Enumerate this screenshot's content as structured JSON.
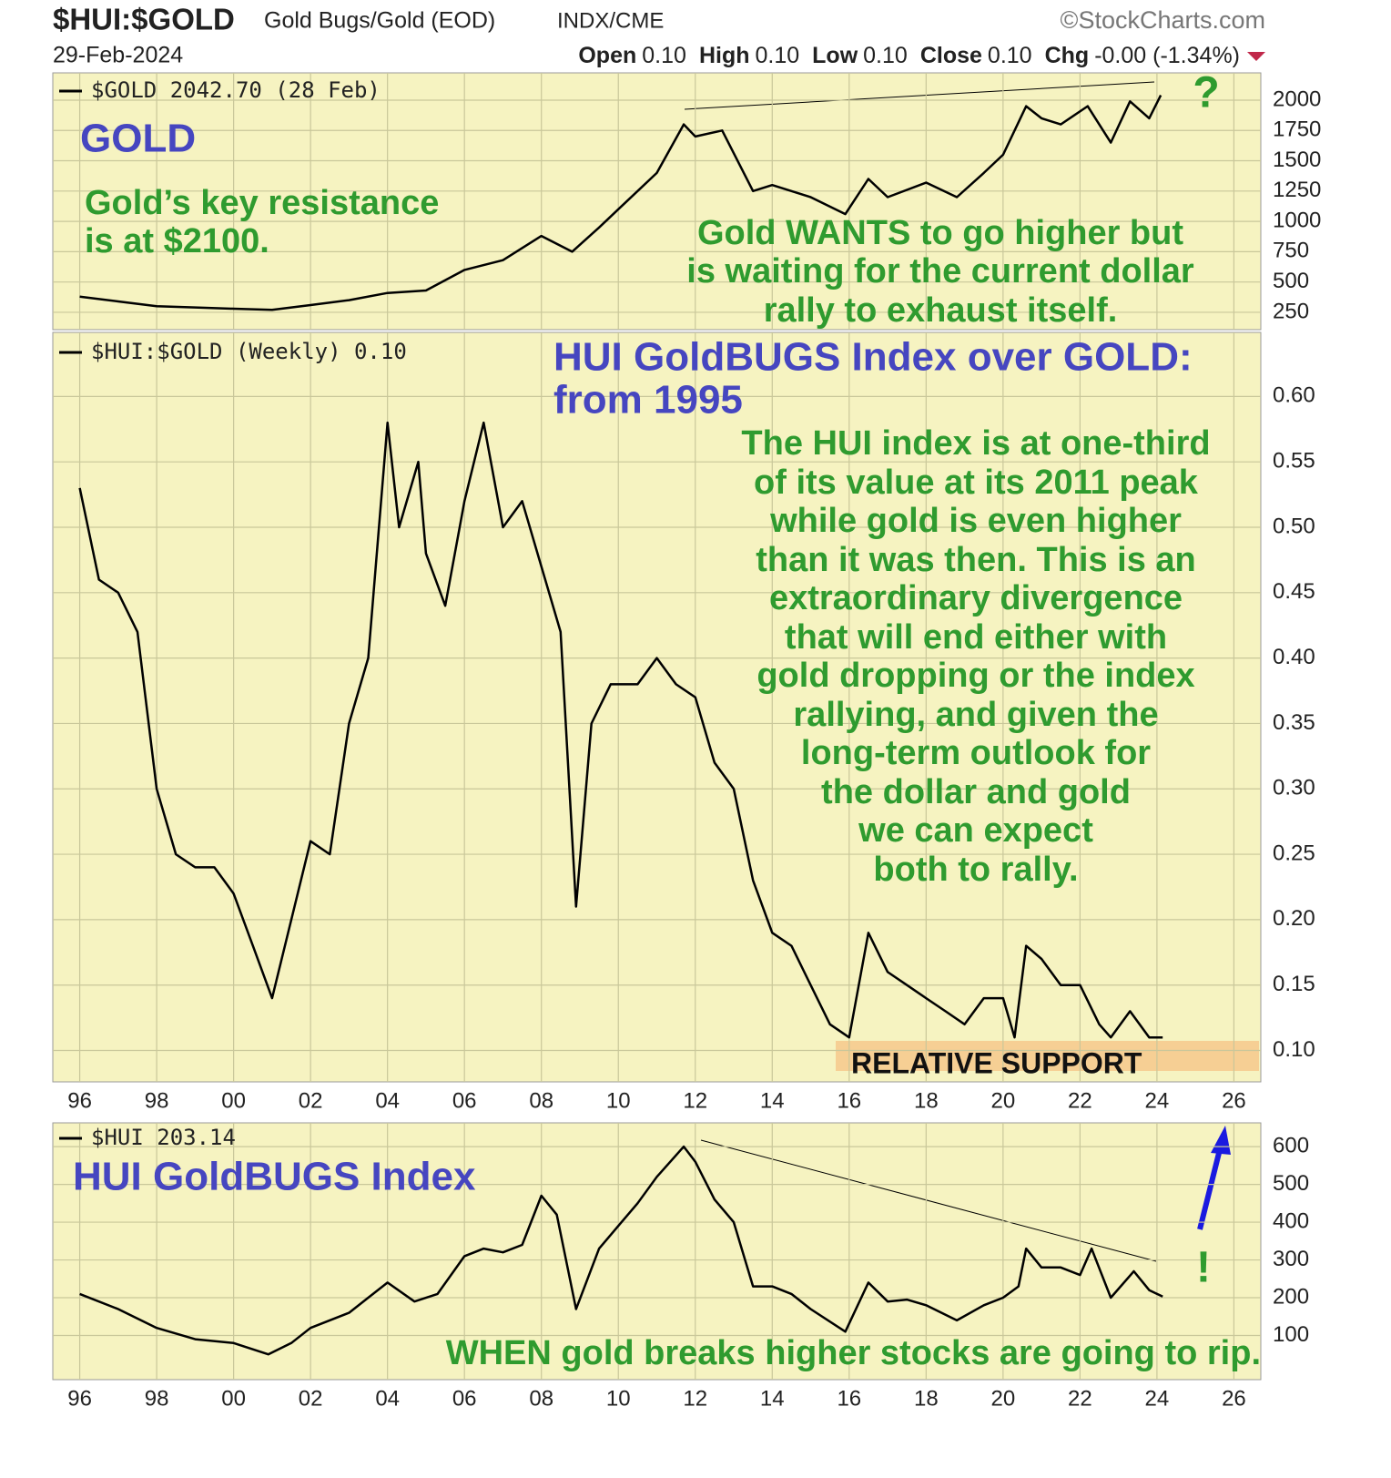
{
  "header": {
    "title": "$HUI:$GOLD",
    "subtitle": "Gold Bugs/Gold (EOD)",
    "exchange": "INDX/CME",
    "source": "©StockCharts.com",
    "date": "29-Feb-2024",
    "quote": [
      {
        "label": "Open",
        "value": "0.10"
      },
      {
        "label": "High",
        "value": "0.10"
      },
      {
        "label": "Low",
        "value": "0.10"
      },
      {
        "label": "Close",
        "value": "0.10"
      },
      {
        "label": "Chg",
        "value": "-0.00 (-1.34%)"
      }
    ]
  },
  "chart_data": [
    {
      "type": "line",
      "x": [
        1996.0,
        1997.0,
        1998.0,
        1999.0,
        2000.0,
        2001.0,
        2002.0,
        2003.0,
        2004.0,
        2005.0,
        2006.0,
        2007.0,
        2008.0,
        2008.8,
        2009.5,
        2010.0,
        2010.5,
        2011.0,
        2011.7,
        2012.0,
        2012.7,
        2013.5,
        2014.0,
        2015.0,
        2015.9,
        2016.5,
        2017.0,
        2018.0,
        2018.8,
        2019.5,
        2020.0,
        2020.6,
        2021.0,
        2021.5,
        2022.2,
        2022.8,
        2023.3,
        2023.8,
        2024.1
      ],
      "series": [
        {
          "name": "$GOLD 2042.70 (28 Feb)",
          "color": "#000000",
          "values": [
            380,
            340,
            300,
            290,
            280,
            270,
            310,
            350,
            410,
            430,
            600,
            680,
            880,
            750,
            950,
            1100,
            1250,
            1400,
            1800,
            1700,
            1750,
            1250,
            1300,
            1200,
            1060,
            1350,
            1200,
            1320,
            1200,
            1400,
            1550,
            1950,
            1850,
            1800,
            1950,
            1650,
            1990,
            1850,
            2040
          ]
        }
      ],
      "xlim": [
        1995.3,
        2026.7
      ],
      "xticks": [
        {
          "value": 1996,
          "label": "96"
        },
        {
          "value": 1998,
          "label": "98"
        },
        {
          "value": 2000,
          "label": "00"
        },
        {
          "value": 2002,
          "label": "02"
        },
        {
          "value": 2004,
          "label": "04"
        },
        {
          "value": 2006,
          "label": "06"
        },
        {
          "value": 2008,
          "label": "08"
        },
        {
          "value": 2010,
          "label": "10"
        },
        {
          "value": 2012,
          "label": "12"
        },
        {
          "value": 2014,
          "label": "14"
        },
        {
          "value": 2016,
          "label": "16"
        },
        {
          "value": 2018,
          "label": "18"
        },
        {
          "value": 2020,
          "label": "20"
        },
        {
          "value": 2022,
          "label": "22"
        },
        {
          "value": 2024,
          "label": "24"
        },
        {
          "value": 2026,
          "label": "26"
        }
      ],
      "ylim": [
        107,
        2165
      ],
      "yticks": [
        250,
        500,
        750,
        1000,
        1250,
        1500,
        1750,
        2000
      ],
      "grid": true,
      "annotations": [
        "GOLD",
        "Gold’s key resistance",
        "is at $2100.",
        "Gold WANTS to go higher but",
        "is waiting for the current  dollar",
        "rally to exhaust itself.",
        "?"
      ]
    },
    {
      "type": "line",
      "x": [
        1996.0,
        1996.5,
        1997.0,
        1997.5,
        1998.0,
        1998.5,
        1999.0,
        1999.5,
        2000.0,
        2000.5,
        2001.0,
        2001.5,
        2002.0,
        2002.5,
        2003.0,
        2003.5,
        2004.0,
        2004.3,
        2004.8,
        2005.0,
        2005.5,
        2006.0,
        2006.5,
        2007.0,
        2007.5,
        2008.0,
        2008.5,
        2008.9,
        2009.3,
        2009.8,
        2010.5,
        2011.0,
        2011.5,
        2012.0,
        2012.5,
        2013.0,
        2013.5,
        2014.0,
        2014.5,
        2015.0,
        2015.5,
        2016.0,
        2016.5,
        2017.0,
        2017.5,
        2018.0,
        2018.5,
        2019.0,
        2019.5,
        2020.0,
        2020.3,
        2020.6,
        2021.0,
        2021.5,
        2022.0,
        2022.5,
        2022.8,
        2023.3,
        2023.8,
        2024.15
      ],
      "series": [
        {
          "name": "$HUI:$GOLD (Weekly) 0.10",
          "color": "#000000",
          "values": [
            0.53,
            0.46,
            0.45,
            0.42,
            0.3,
            0.25,
            0.24,
            0.24,
            0.22,
            0.18,
            0.14,
            0.2,
            0.26,
            0.25,
            0.35,
            0.4,
            0.58,
            0.5,
            0.55,
            0.48,
            0.44,
            0.52,
            0.58,
            0.5,
            0.52,
            0.47,
            0.42,
            0.21,
            0.35,
            0.38,
            0.38,
            0.4,
            0.38,
            0.37,
            0.32,
            0.3,
            0.23,
            0.19,
            0.18,
            0.15,
            0.12,
            0.11,
            0.19,
            0.16,
            0.15,
            0.14,
            0.13,
            0.12,
            0.14,
            0.14,
            0.11,
            0.18,
            0.17,
            0.15,
            0.15,
            0.12,
            0.11,
            0.13,
            0.11,
            0.11
          ]
        }
      ],
      "xlim": [
        1995.3,
        2026.7
      ],
      "xticks": [
        {
          "value": 1996,
          "label": "96"
        },
        {
          "value": 1998,
          "label": "98"
        },
        {
          "value": 2000,
          "label": "00"
        },
        {
          "value": 2002,
          "label": "02"
        },
        {
          "value": 2004,
          "label": "04"
        },
        {
          "value": 2006,
          "label": "06"
        },
        {
          "value": 2008,
          "label": "08"
        },
        {
          "value": 2010,
          "label": "10"
        },
        {
          "value": 2012,
          "label": "12"
        },
        {
          "value": 2014,
          "label": "14"
        },
        {
          "value": 2016,
          "label": "16"
        },
        {
          "value": 2018,
          "label": "18"
        },
        {
          "value": 2020,
          "label": "20"
        },
        {
          "value": 2022,
          "label": "22"
        },
        {
          "value": 2024,
          "label": "24"
        },
        {
          "value": 2026,
          "label": "26"
        }
      ],
      "ylim": [
        0.076,
        0.649
      ],
      "yticks": [
        {
          "value": 0.1,
          "label": "0.10"
        },
        0.15,
        {
          "value": 0.2,
          "label": "0.20"
        },
        0.25,
        {
          "value": 0.3,
          "label": "0.30"
        },
        0.35,
        {
          "value": 0.4,
          "label": "0.40"
        },
        0.45,
        {
          "value": 0.5,
          "label": "0.50"
        },
        0.55,
        {
          "value": 0.6,
          "label": "0.60"
        }
      ],
      "grid": true,
      "annotations": [
        "HUI GoldBUGS Index over GOLD:",
        "from 1995",
        "The HUI index is at one-third",
        "of its value at its 2011 peak",
        "while gold is even higher",
        "than it was then. This is an",
        "extraordinary divergence",
        "that will end either with",
        "gold dropping or the index",
        "rallying, and given the",
        "long-term outlook for",
        "the dollar and gold",
        "we can expect",
        "both to rally.",
        "RELATIVE SUPPORT"
      ]
    },
    {
      "type": "line",
      "x": [
        1996.0,
        1997.0,
        1998.0,
        1999.0,
        2000.0,
        2000.9,
        2001.5,
        2002.0,
        2003.0,
        2003.5,
        2004.0,
        2004.7,
        2005.3,
        2006.0,
        2006.5,
        2007.0,
        2007.5,
        2008.0,
        2008.4,
        2008.9,
        2009.5,
        2010.0,
        2010.5,
        2011.0,
        2011.7,
        2012.0,
        2012.5,
        2013.0,
        2013.5,
        2014.0,
        2014.5,
        2015.0,
        2015.9,
        2016.5,
        2017.0,
        2017.5,
        2018.0,
        2018.8,
        2019.5,
        2020.0,
        2020.4,
        2020.6,
        2021.0,
        2021.5,
        2022.0,
        2022.3,
        2022.8,
        2023.4,
        2023.8,
        2024.15
      ],
      "series": [
        {
          "name": "$HUI 203.14",
          "color": "#000000",
          "values": [
            210,
            170,
            120,
            90,
            80,
            50,
            80,
            120,
            160,
            200,
            240,
            190,
            210,
            310,
            330,
            320,
            340,
            470,
            420,
            170,
            330,
            390,
            450,
            520,
            600,
            560,
            460,
            400,
            230,
            230,
            210,
            170,
            110,
            240,
            190,
            195,
            180,
            140,
            180,
            200,
            230,
            330,
            280,
            280,
            260,
            330,
            200,
            270,
            220,
            203
          ]
        }
      ],
      "xlim": [
        1995.3,
        2026.7
      ],
      "xticks": [
        {
          "value": 1996,
          "label": "96"
        },
        {
          "value": 1998,
          "label": "98"
        },
        {
          "value": 2000,
          "label": "00"
        },
        {
          "value": 2002,
          "label": "02"
        },
        {
          "value": 2004,
          "label": "04"
        },
        {
          "value": 2006,
          "label": "06"
        },
        {
          "value": 2008,
          "label": "08"
        },
        {
          "value": 2010,
          "label": "10"
        },
        {
          "value": 2012,
          "label": "12"
        },
        {
          "value": 2014,
          "label": "14"
        },
        {
          "value": 2016,
          "label": "16"
        },
        {
          "value": 2018,
          "label": "18"
        },
        {
          "value": 2020,
          "label": "20"
        },
        {
          "value": 2022,
          "label": "22"
        },
        {
          "value": 2024,
          "label": "24"
        },
        {
          "value": 2026,
          "label": "26"
        }
      ],
      "ylim": [
        -17,
        663
      ],
      "yticks": [
        100,
        200,
        300,
        400,
        500,
        600
      ],
      "grid": true,
      "annotations": [
        "HUI GoldBUGS Index",
        "!",
        "WHEN gold breaks higher stocks are going to rip."
      ]
    }
  ]
}
